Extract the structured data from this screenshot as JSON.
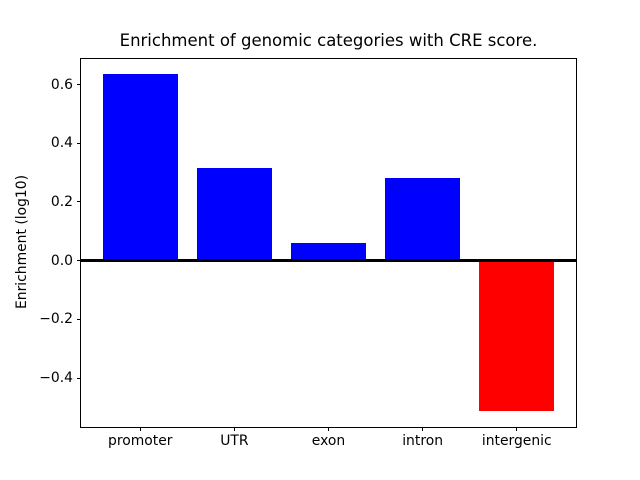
{
  "figure": {
    "background": "#ffffff",
    "text_color": "#000000",
    "axis_color": "#000000"
  },
  "chart_data": {
    "type": "bar",
    "title": "Enrichment of genomic categories with CRE score.",
    "xlabel": "",
    "ylabel": "Enrichment (log10)",
    "categories": [
      "promoter",
      "UTR",
      "exon",
      "intron",
      "intergenic"
    ],
    "values": [
      0.635,
      0.315,
      0.06,
      0.28,
      -0.512
    ],
    "bar_colors": [
      "#0000ff",
      "#0000ff",
      "#0000ff",
      "#0000ff",
      "#ff0000"
    ],
    "positive_color": "#0000ff",
    "negative_color": "#ff0000",
    "yticks": [
      0.6,
      0.4,
      0.2,
      0.0,
      -0.2,
      -0.4
    ],
    "ytick_labels": [
      "0.6",
      "0.4",
      "0.2",
      "0.0",
      "−0.2",
      "−0.4"
    ],
    "ylim": [
      -0.568,
      0.692
    ],
    "xlim": [
      -0.64,
      4.64
    ],
    "bar_width": 0.8,
    "zero_line": true,
    "grid": false,
    "legend": null
  }
}
